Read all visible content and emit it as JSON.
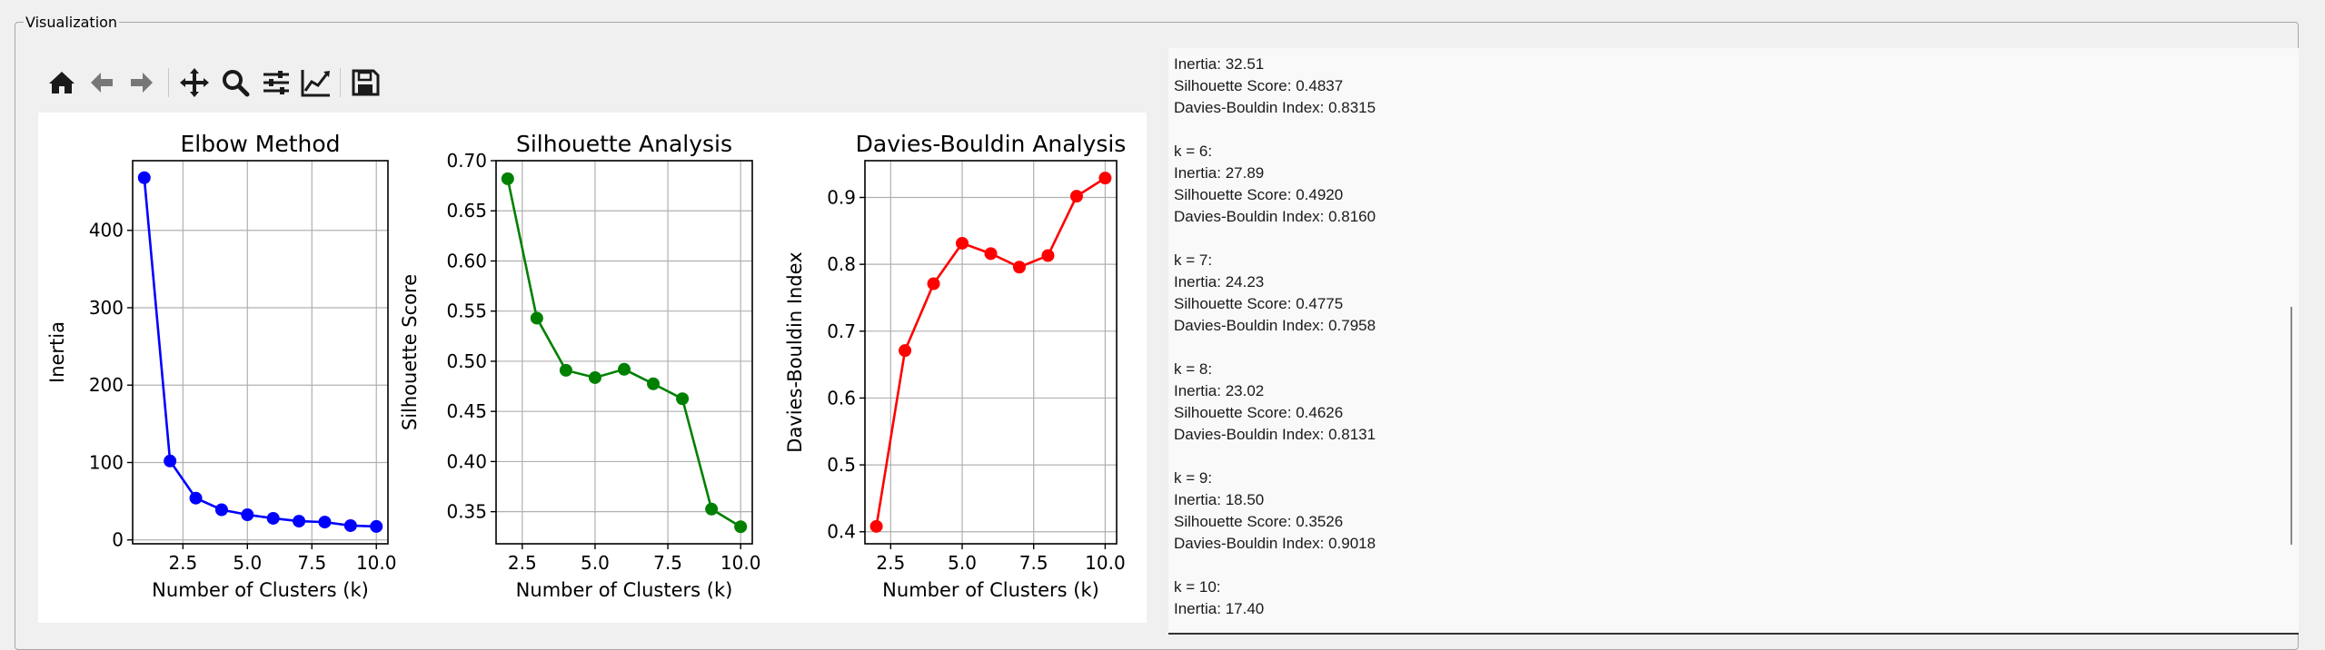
{
  "group_title": "Visualization",
  "toolbar": [
    {
      "name": "home-icon"
    },
    {
      "name": "back-arrow-icon"
    },
    {
      "name": "forward-arrow-icon"
    },
    {
      "name": "pan-icon"
    },
    {
      "name": "zoom-icon"
    },
    {
      "name": "configure-subplots-icon"
    },
    {
      "name": "edit-axis-icon"
    },
    {
      "name": "save-icon"
    }
  ],
  "chart_data": [
    {
      "type": "line",
      "title": "Elbow Method",
      "xlabel": "Number of Clusters (k)",
      "ylabel": "Inertia",
      "color": "#0000ff",
      "x": [
        1,
        2,
        3,
        4,
        5,
        6,
        7,
        8,
        9,
        10
      ],
      "y": [
        468,
        102,
        54,
        39,
        32.51,
        27.89,
        24.23,
        23.02,
        18.5,
        17.4
      ],
      "xlim": [
        0.55,
        10.45
      ],
      "ylim": [
        -5,
        490
      ],
      "xticks": [
        2.5,
        5.0,
        7.5,
        10.0
      ],
      "xtick_labels": [
        "2.5",
        "5.0",
        "7.5",
        "10.0"
      ],
      "yticks": [
        0,
        100,
        200,
        300,
        400
      ],
      "ytick_labels": [
        "0",
        "100",
        "200",
        "300",
        "400"
      ],
      "grid": true
    },
    {
      "type": "line",
      "title": "Silhouette Analysis",
      "xlabel": "Number of Clusters (k)",
      "ylabel": "Silhouette Score",
      "color": "#008000",
      "x": [
        2,
        3,
        4,
        5,
        6,
        7,
        8,
        9,
        10
      ],
      "y": [
        0.682,
        0.543,
        0.491,
        0.4837,
        0.492,
        0.4775,
        0.4626,
        0.3526,
        0.335
      ],
      "xlim": [
        1.6,
        10.4
      ],
      "ylim": [
        0.318,
        0.7
      ],
      "xticks": [
        2.5,
        5.0,
        7.5,
        10.0
      ],
      "xtick_labels": [
        "2.5",
        "5.0",
        "7.5",
        "10.0"
      ],
      "yticks": [
        0.35,
        0.4,
        0.45,
        0.5,
        0.55,
        0.6,
        0.65,
        0.7
      ],
      "ytick_labels": [
        "0.35",
        "0.40",
        "0.45",
        "0.50",
        "0.55",
        "0.60",
        "0.65",
        "0.70"
      ],
      "grid": true
    },
    {
      "type": "line",
      "title": "Davies-Bouldin Analysis",
      "xlabel": "Number of Clusters (k)",
      "ylabel": "Davies-Bouldin Index",
      "color": "#ff0000",
      "x": [
        2,
        3,
        4,
        5,
        6,
        7,
        8,
        9,
        10
      ],
      "y": [
        0.408,
        0.671,
        0.771,
        0.8315,
        0.816,
        0.7958,
        0.8131,
        0.9018,
        0.929
      ],
      "xlim": [
        1.6,
        10.4
      ],
      "ylim": [
        0.382,
        0.955
      ],
      "xticks": [
        2.5,
        5.0,
        7.5,
        10.0
      ],
      "xtick_labels": [
        "2.5",
        "5.0",
        "7.5",
        "10.0"
      ],
      "yticks": [
        0.4,
        0.5,
        0.6,
        0.7,
        0.8,
        0.9
      ],
      "ytick_labels": [
        "0.4",
        "0.5",
        "0.6",
        "0.7",
        "0.8",
        "0.9"
      ],
      "grid": true
    }
  ],
  "results": [
    {
      "k": "k = 5:",
      "inertia": "Inertia: 32.51",
      "silhouette": "Silhouette Score: 0.4837",
      "db": "Davies-Bouldin Index: 0.8315"
    },
    {
      "k": "k = 6:",
      "inertia": "Inertia: 27.89",
      "silhouette": "Silhouette Score: 0.4920",
      "db": "Davies-Bouldin Index: 0.8160"
    },
    {
      "k": "k = 7:",
      "inertia": "Inertia: 24.23",
      "silhouette": "Silhouette Score: 0.4775",
      "db": "Davies-Bouldin Index: 0.7958"
    },
    {
      "k": "k = 8:",
      "inertia": "Inertia: 23.02",
      "silhouette": "Silhouette Score: 0.4626",
      "db": "Davies-Bouldin Index: 0.8131"
    },
    {
      "k": "k = 9:",
      "inertia": "Inertia: 18.50",
      "silhouette": "Silhouette Score: 0.3526",
      "db": "Davies-Bouldin Index: 0.9018"
    },
    {
      "k": "k = 10:",
      "inertia": "Inertia: 17.40",
      "silhouette": "",
      "db": ""
    }
  ]
}
